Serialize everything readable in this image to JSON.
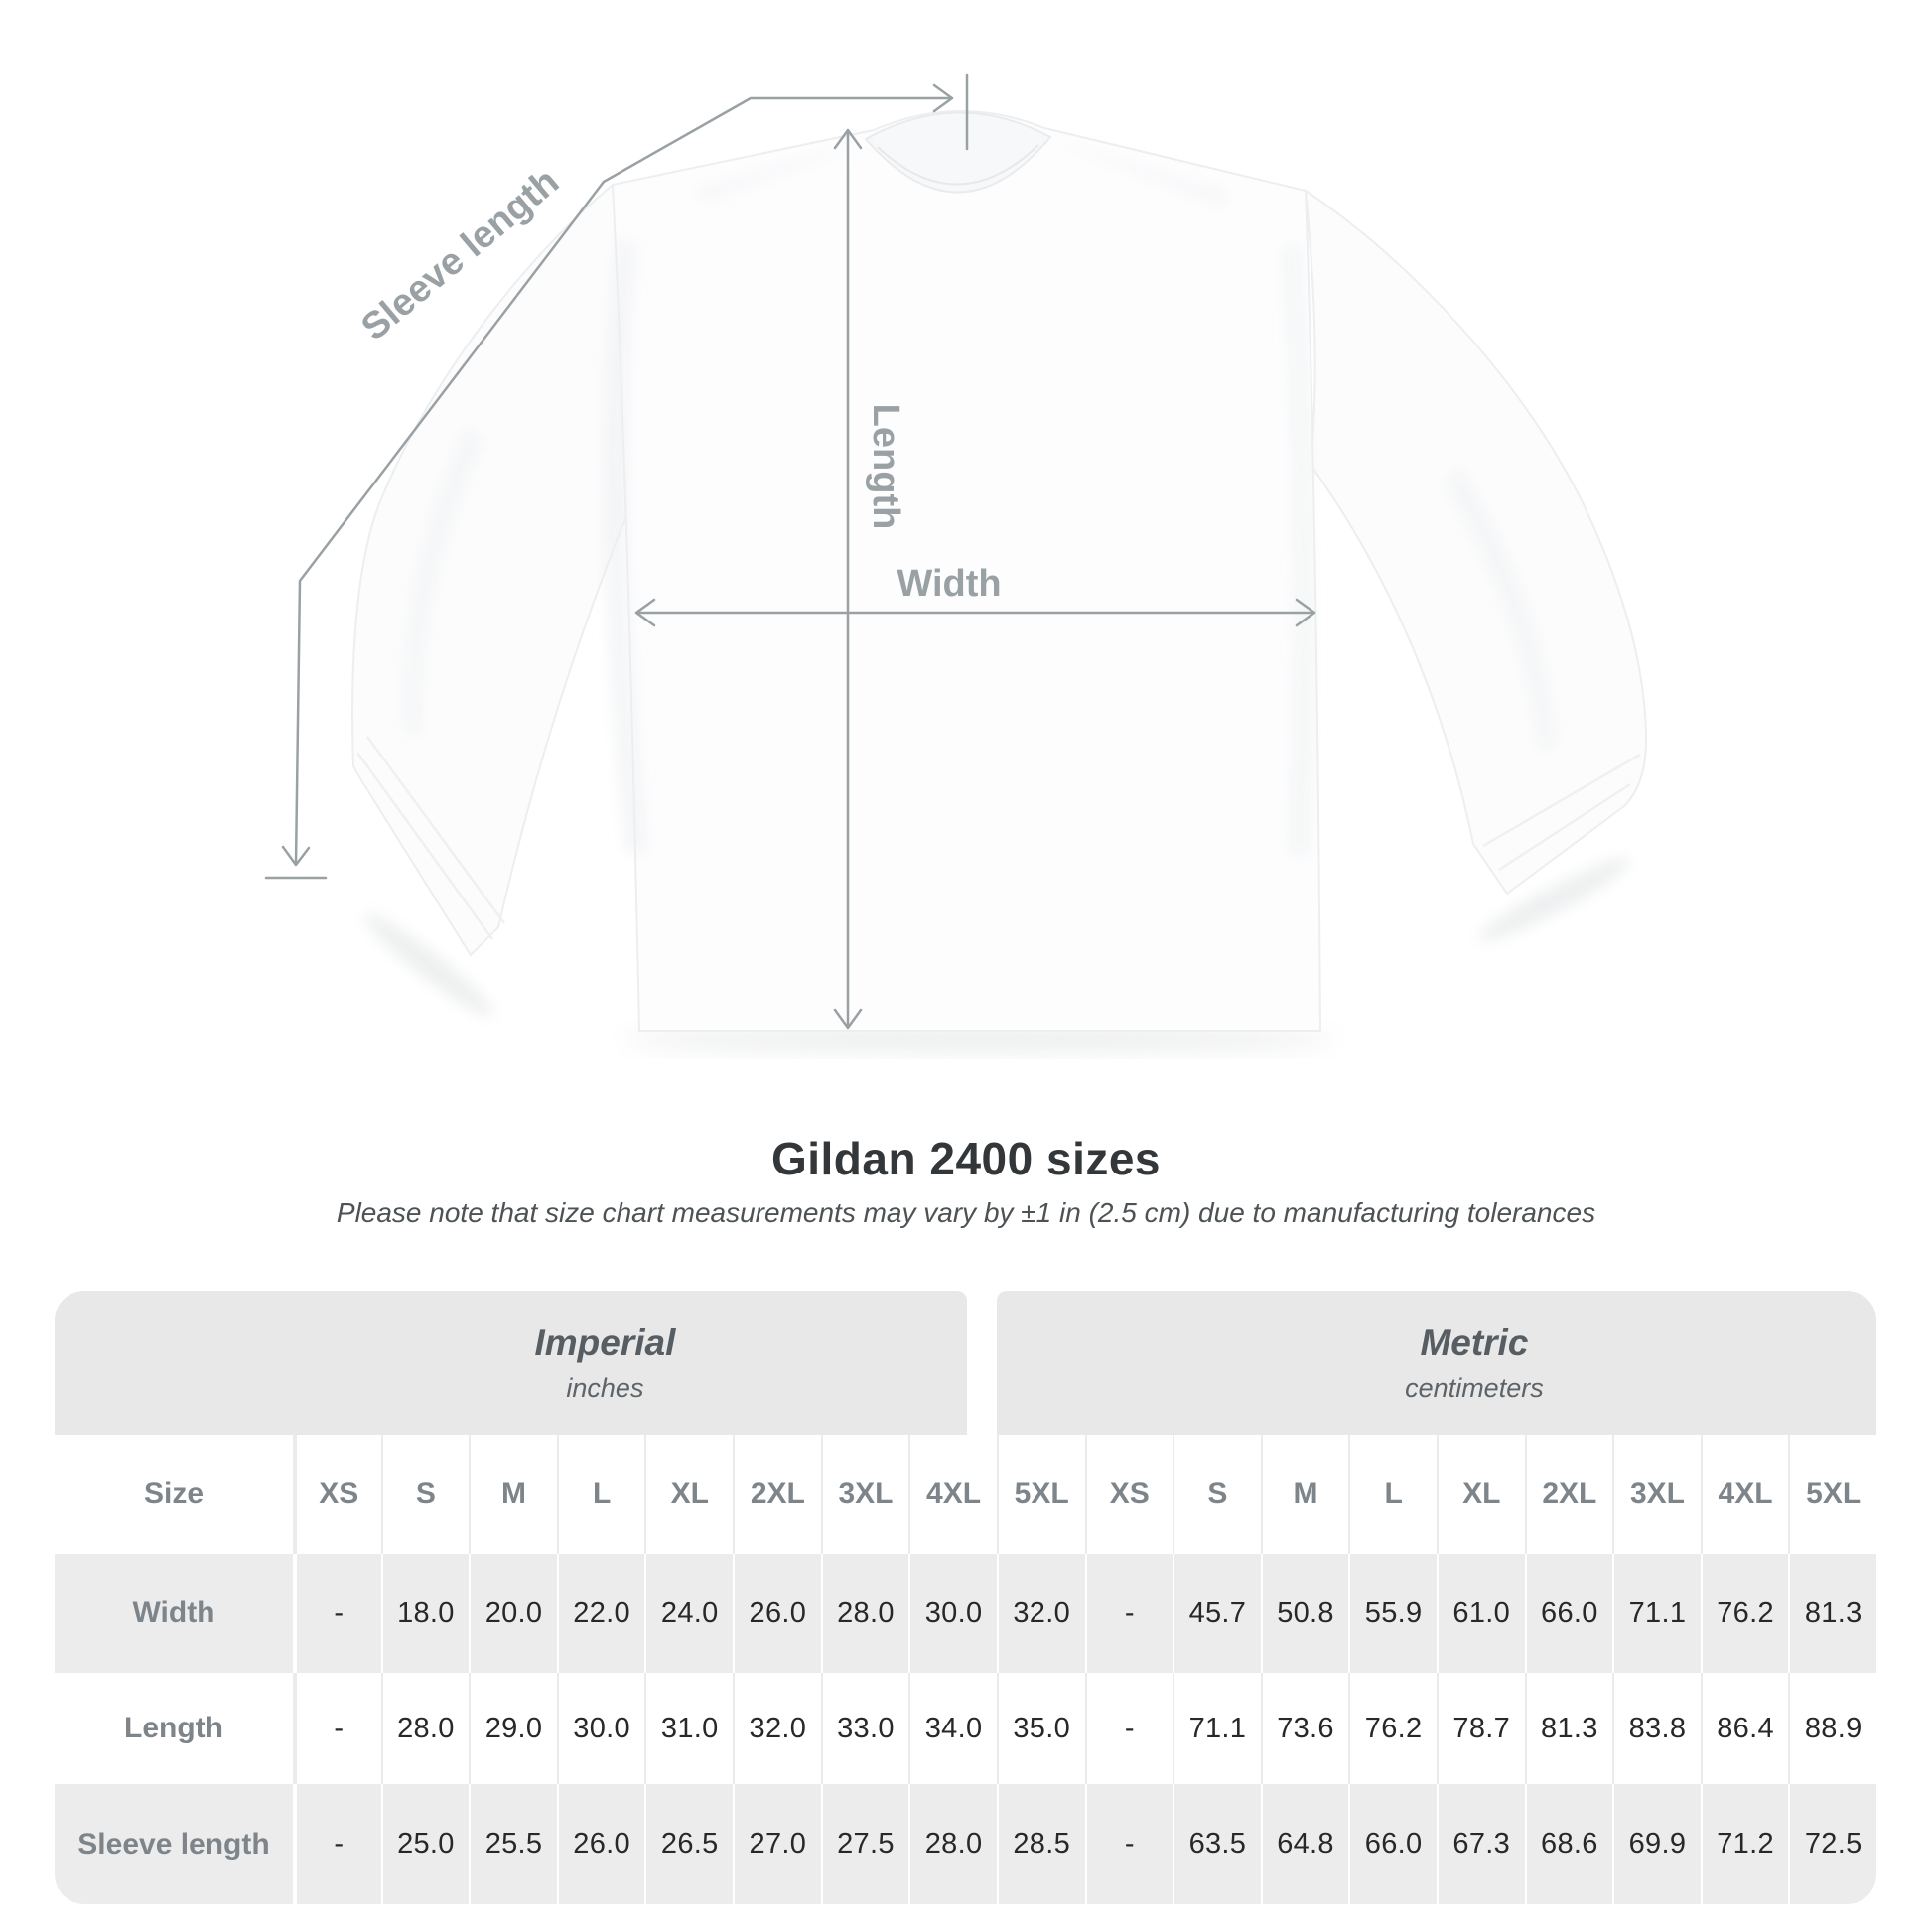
{
  "diagram": {
    "labels": {
      "sleeve_length": "Sleeve length",
      "length": "Length",
      "width": "Width"
    }
  },
  "title": "Gildan 2400 sizes",
  "subtitle": "Please note that size chart measurements may vary by ±1 in (2.5 cm) due to manufacturing tolerances",
  "table": {
    "size_label": "Size",
    "unit_groups": [
      {
        "name": "Imperial",
        "unit": "inches"
      },
      {
        "name": "Metric",
        "unit": "centimeters"
      }
    ],
    "sizes": [
      "XS",
      "S",
      "M",
      "L",
      "XL",
      "2XL",
      "3XL",
      "4XL",
      "5XL"
    ],
    "rows": [
      {
        "label": "Width",
        "imperial": [
          "-",
          "18.0",
          "20.0",
          "22.0",
          "24.0",
          "26.0",
          "28.0",
          "30.0",
          "32.0"
        ],
        "metric": [
          "-",
          "45.7",
          "50.8",
          "55.9",
          "61.0",
          "66.0",
          "71.1",
          "76.2",
          "81.3"
        ]
      },
      {
        "label": "Length",
        "imperial": [
          "-",
          "28.0",
          "29.0",
          "30.0",
          "31.0",
          "32.0",
          "33.0",
          "34.0",
          "35.0"
        ],
        "metric": [
          "-",
          "71.1",
          "73.6",
          "76.2",
          "78.7",
          "81.3",
          "83.8",
          "86.4",
          "88.9"
        ]
      },
      {
        "label": "Sleeve length",
        "imperial": [
          "-",
          "25.0",
          "25.5",
          "26.0",
          "26.5",
          "27.0",
          "27.5",
          "28.0",
          "28.5"
        ],
        "metric": [
          "-",
          "63.5",
          "64.8",
          "66.0",
          "67.3",
          "68.6",
          "69.9",
          "71.2",
          "72.5"
        ]
      }
    ]
  },
  "colors": {
    "measurement": "#9aa1a5",
    "pill_bg": "#e8e8e8",
    "stripe_bg": "#ececec",
    "label_gray": "#7e858a",
    "value_dark": "#26282a"
  }
}
